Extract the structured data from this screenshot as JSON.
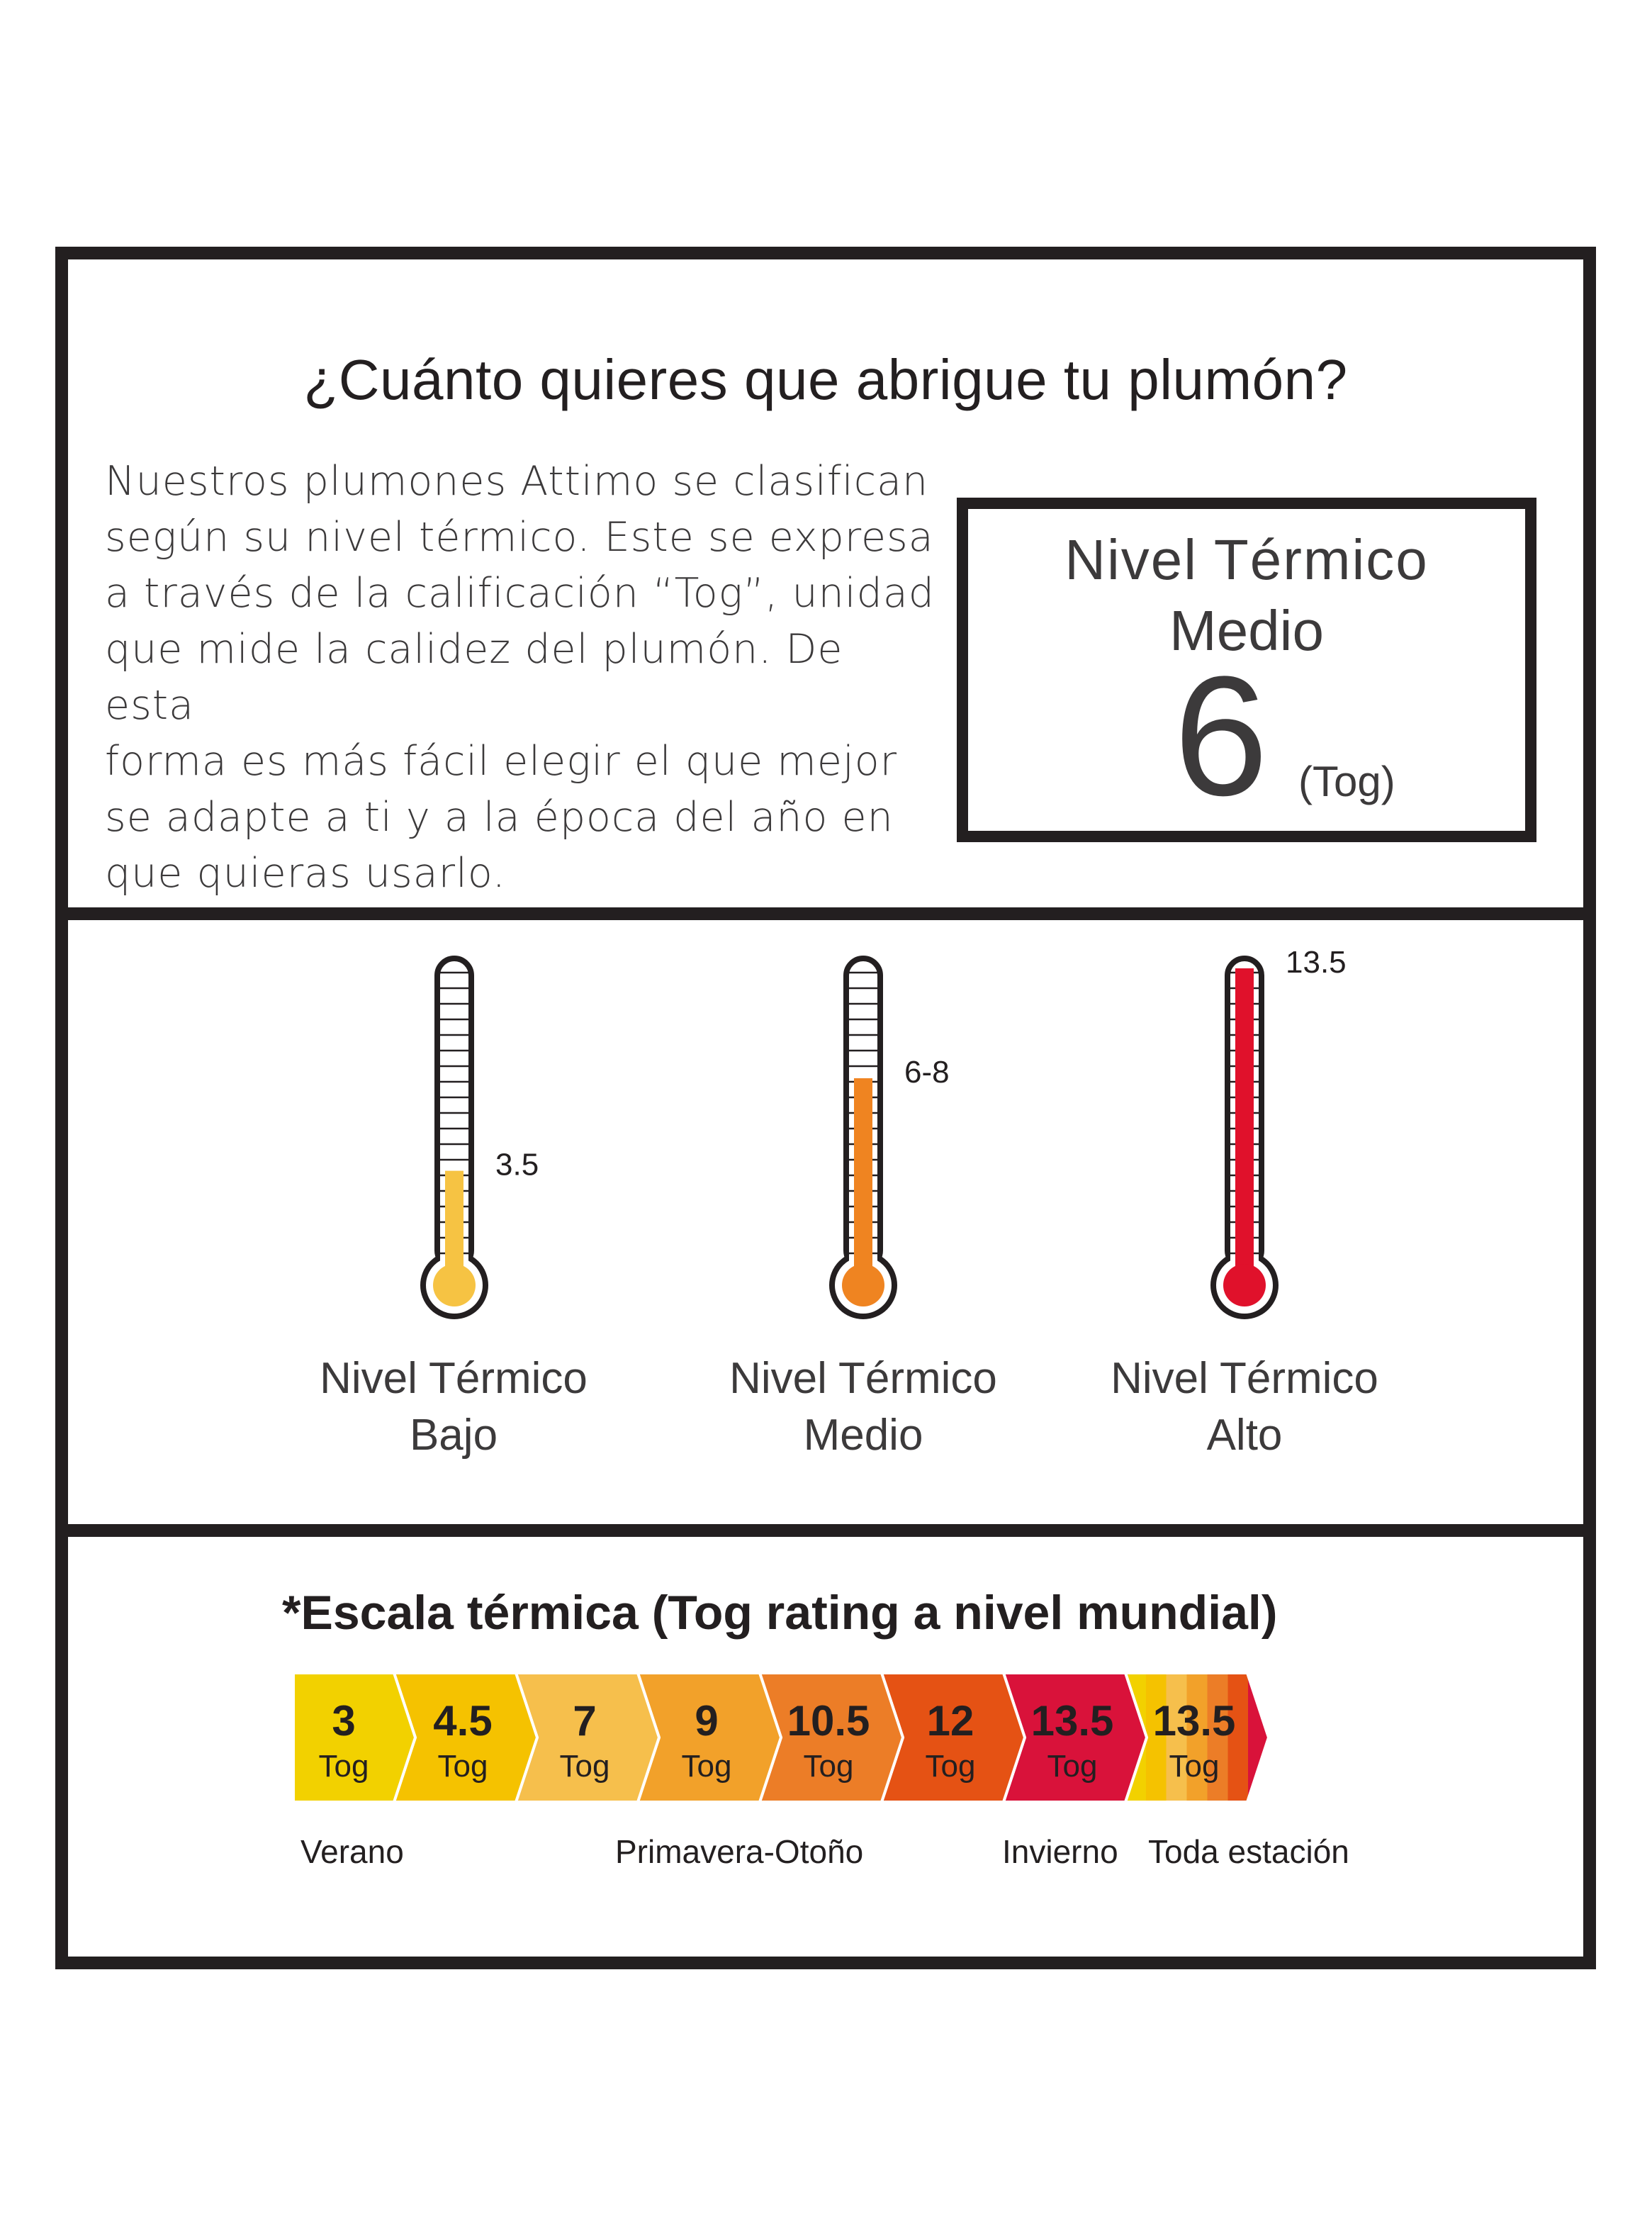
{
  "title": "¿Cuánto quieres que abrigue tu plumón?",
  "intro_text": "Nuestros plumones Attimo se clasifican\nsegún su nivel térmico. Este se expresa\na través de la calificación “Tog”, unidad\nque mide la calidez del plumón. De esta\nforma es más fácil elegir el que mejor\nse adapte a ti y a la época del año en\nque quieras usarlo.",
  "level_box": {
    "line1": "Nivel Térmico",
    "line2": "Medio",
    "value": "6",
    "unit": "(Tog)"
  },
  "thermometers": [
    {
      "label_line1": "Nivel Térmico",
      "label_line2": "Bajo",
      "reading": "3.5",
      "fill_fraction": 0.3,
      "color": "#f6c343"
    },
    {
      "label_line1": "Nivel Térmico",
      "label_line2": "Medio",
      "reading": "6-8",
      "fill_fraction": 0.62,
      "color": "#ef8421"
    },
    {
      "label_line1": "Nivel Térmico",
      "label_line2": "Alto",
      "reading": "13.5",
      "fill_fraction": 1.0,
      "color": "#e0112b"
    }
  ],
  "scale": {
    "title": "*Escala térmica (Tog rating a nivel mundial)",
    "segments": [
      {
        "value": "3",
        "unit": "Tog",
        "color": "#f2d100"
      },
      {
        "value": "4.5",
        "unit": "Tog",
        "color": "#f5c200"
      },
      {
        "value": "7",
        "unit": "Tog",
        "color": "#f6bf4c"
      },
      {
        "value": "9",
        "unit": "Tog",
        "color": "#f2a12a"
      },
      {
        "value": "10.5",
        "unit": "Tog",
        "color": "#ec7d27"
      },
      {
        "value": "12",
        "unit": "Tog",
        "color": "#e55214"
      },
      {
        "value": "13.5",
        "unit": "Tog",
        "color": "#d9123a"
      },
      {
        "value": "13.5",
        "unit": "Tog",
        "color": "gradient"
      }
    ],
    "gradient_colors": [
      "#f2d100",
      "#f5c200",
      "#f6bf4c",
      "#f2a12a",
      "#ec7d27",
      "#e55214",
      "#d9123a"
    ],
    "seasons": [
      "Verano",
      "Primavera-Otoño",
      "Invierno",
      "Toda estación"
    ]
  }
}
